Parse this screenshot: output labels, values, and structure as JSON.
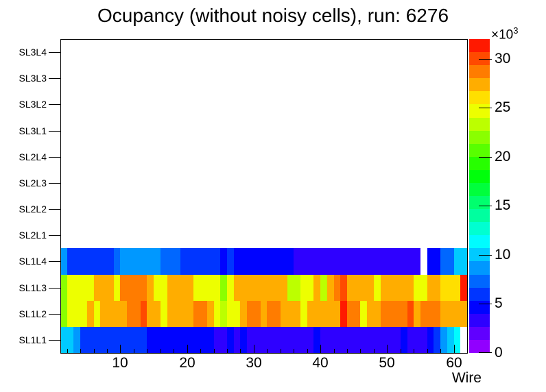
{
  "title": "Ocupancy (without noisy cells), run: 6276",
  "chart_data": {
    "type": "heatmap",
    "title": "Ocupancy (without noisy cells), run: 6276",
    "xlabel": "Wire",
    "x_range": [
      1,
      62
    ],
    "n_wires": 61,
    "x_ticks": [
      10,
      20,
      30,
      40,
      50,
      60
    ],
    "x_minor_tick_step": 2,
    "y_categories_top_to_bottom": [
      "SL3L4",
      "SL3L3",
      "SL3L2",
      "SL3L1",
      "SL2L4",
      "SL2L3",
      "SL2L2",
      "SL2L1",
      "SL1L4",
      "SL1L3",
      "SL1L2",
      "SL1L1"
    ],
    "empty_rows": [
      "SL3L4",
      "SL3L3",
      "SL3L2",
      "SL3L1",
      "SL2L4",
      "SL2L3",
      "SL2L2",
      "SL2L1"
    ],
    "values_unit": "1e3 counts",
    "z_scale": {
      "min": 0,
      "max": 32,
      "ticks": [
        0,
        5,
        10,
        15,
        20,
        25,
        30
      ],
      "exponent_base": "×10",
      "exponent_power": "3",
      "n_bands": 24,
      "hue_start_deg": 280,
      "hue_end_deg": 0,
      "zero_color": "#ffffff"
    },
    "rows": {
      "SL1L4": [
        8.5,
        6.3,
        6.3,
        6.3,
        6.3,
        6.3,
        6.3,
        6.3,
        7.5,
        9,
        9,
        9,
        9,
        9,
        9,
        7.5,
        7.5,
        7.5,
        6.3,
        6.3,
        6.3,
        6.3,
        6.3,
        6.3,
        4.9,
        5.8,
        4.6,
        4.6,
        4.6,
        4.6,
        4.6,
        4.6,
        4.6,
        4.6,
        4.6,
        2.8,
        2.8,
        2.8,
        2.8,
        2.8,
        2.8,
        2.8,
        2.8,
        2.8,
        2.8,
        2.8,
        2.8,
        2.8,
        2.8,
        2.8,
        2.8,
        2.8,
        2.8,
        2.8,
        0,
        4.9,
        4.9,
        7.8,
        7.8,
        9.5,
        9.5
      ],
      "SL1L3": [
        22.4,
        25.2,
        25.2,
        25.2,
        25.2,
        27.5,
        27.5,
        27.5,
        25.2,
        28.6,
        28.6,
        28.6,
        28.6,
        27.5,
        25.2,
        25.2,
        27.5,
        27.5,
        27.5,
        27.5,
        25.2,
        25.2,
        25.2,
        25.2,
        22,
        25.2,
        27.5,
        27.5,
        27.5,
        27.5,
        27.5,
        27.5,
        27.5,
        27.5,
        23.9,
        23.9,
        25.2,
        25.2,
        27.5,
        23.9,
        27.5,
        28.6,
        30.4,
        27.9,
        27.5,
        27.5,
        27.5,
        25.2,
        27.5,
        27.5,
        27.5,
        27.5,
        27.5,
        25.2,
        25.2,
        27.5,
        27.5,
        25.5,
        25.5,
        25.5,
        32
      ],
      "SL1L2": [
        22.4,
        25.2,
        25.2,
        25.2,
        27.5,
        25.2,
        27.5,
        27.5,
        27.5,
        27.5,
        28.6,
        28.6,
        30.4,
        27.5,
        27.5,
        25.2,
        27.5,
        27.5,
        27.5,
        27.5,
        28.6,
        28.6,
        27.5,
        25.2,
        23.9,
        25.2,
        25.2,
        27.5,
        28.6,
        28.6,
        27.5,
        28.6,
        28.6,
        27.5,
        27.5,
        27.5,
        25.2,
        27.5,
        27.5,
        27.5,
        27.5,
        27.5,
        31.2,
        28.6,
        28.2,
        25.2,
        27.5,
        27.5,
        28.6,
        28.6,
        28.6,
        28.6,
        30,
        27.5,
        28.2,
        28.6,
        28.6,
        27.5,
        27.5,
        27.5,
        27.5
      ],
      "SL1L1": [
        10.3,
        10.3,
        8.2,
        6.3,
        6.3,
        6.3,
        6.3,
        6.3,
        6.3,
        6.3,
        6.3,
        6.3,
        6.3,
        5,
        5,
        5,
        5,
        5,
        5,
        5,
        5,
        5,
        5,
        3,
        3,
        5,
        3,
        4.6,
        2.8,
        2.8,
        2.8,
        2.8,
        2.8,
        2.8,
        2.8,
        2.8,
        2.8,
        2.8,
        4.6,
        2.8,
        2.8,
        2.8,
        2.8,
        2.8,
        2.8,
        2.8,
        2.8,
        2.8,
        2.8,
        2.8,
        2.8,
        4.6,
        2.8,
        2.8,
        2.8,
        5,
        6.3,
        8.2,
        9.9,
        11,
        0
      ]
    },
    "layout_hints": {
      "grid": false,
      "legend": "right color scale",
      "frame_bg": "#ffffff"
    }
  }
}
